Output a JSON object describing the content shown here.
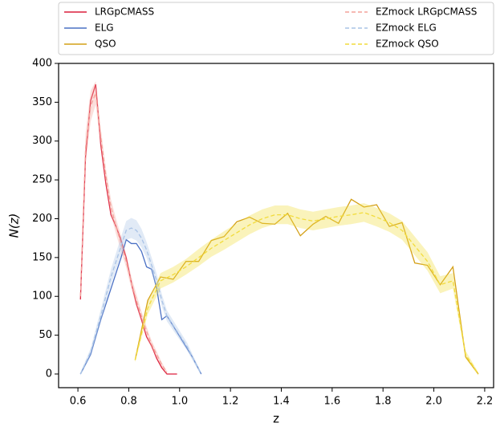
{
  "chart_data": {
    "type": "line",
    "xlabel": "z",
    "ylabel": "N(z)",
    "xlim": [
      0.524,
      2.235
    ],
    "ylim": [
      -17.6,
      400
    ],
    "xticks": [
      0.6,
      0.8,
      {
        "value": 1,
        "label": "1.0"
      },
      1.2,
      1.4,
      1.6,
      1.8,
      {
        "value": 2,
        "label": "2.0"
      },
      2.2
    ],
    "yticks": [
      0,
      50,
      100,
      150,
      200,
      250,
      300,
      350,
      400
    ],
    "series": [
      {
        "name": "LRGpCMASS",
        "color": "#dc1f3c",
        "x": [
          0.61,
          0.63,
          0.65,
          0.67,
          0.69,
          0.71,
          0.73,
          0.75,
          0.77,
          0.79,
          0.81,
          0.83,
          0.85,
          0.87,
          0.89,
          0.91,
          0.93,
          0.95,
          0.97,
          0.99
        ],
        "values": [
          96,
          280,
          352,
          373,
          295,
          245,
          205,
          190,
          172,
          150,
          118,
          90,
          70,
          48,
          36,
          20,
          8,
          0,
          0,
          0
        ]
      },
      {
        "name": "ELG",
        "color": "#4a70c4",
        "x": [
          0.61,
          0.65,
          0.69,
          0.73,
          0.77,
          0.79,
          0.81,
          0.83,
          0.85,
          0.87,
          0.89,
          0.91,
          0.93,
          0.95,
          1.05,
          1.085
        ],
        "values": [
          0,
          25,
          70,
          110,
          150,
          173,
          168,
          168,
          158,
          138,
          135,
          110,
          70,
          75,
          22,
          0
        ]
      },
      {
        "name": "QSO",
        "color": "#d4a017",
        "x": [
          0.825,
          0.875,
          0.925,
          0.975,
          1.025,
          1.075,
          1.125,
          1.175,
          1.225,
          1.275,
          1.325,
          1.375,
          1.425,
          1.475,
          1.525,
          1.575,
          1.625,
          1.675,
          1.725,
          1.775,
          1.825,
          1.875,
          1.925,
          1.975,
          2.025,
          2.075,
          2.125,
          2.175
        ],
        "values": [
          18,
          95,
          125,
          122,
          145,
          145,
          172,
          177,
          196,
          202,
          194,
          193,
          207,
          178,
          193,
          203,
          194,
          225,
          215,
          218,
          190,
          195,
          143,
          140,
          115,
          138,
          22,
          0
        ]
      },
      {
        "name": "EZmock LRGpCMASS",
        "color": "#f4a29a",
        "dashed": true,
        "x": [
          0.61,
          0.63,
          0.65,
          0.67,
          0.69,
          0.71,
          0.73,
          0.75,
          0.77,
          0.79,
          0.81,
          0.83,
          0.85,
          0.87,
          0.89,
          0.91,
          0.93,
          0.95
        ],
        "values": [
          100,
          290,
          345,
          362,
          305,
          255,
          215,
          190,
          168,
          145,
          118,
          95,
          75,
          55,
          38,
          25,
          12,
          2
        ],
        "errors": [
          8,
          20,
          20,
          15,
          12,
          10,
          10,
          10,
          10,
          8,
          8,
          8,
          6,
          6,
          5,
          4,
          3,
          2
        ]
      },
      {
        "name": "EZmock ELG",
        "color": "#a9c3e6",
        "dashed": true,
        "x": [
          0.61,
          0.65,
          0.69,
          0.73,
          0.77,
          0.79,
          0.81,
          0.83,
          0.85,
          0.87,
          0.89,
          0.91,
          0.93,
          0.95,
          0.99,
          1.03,
          1.05,
          1.085
        ],
        "values": [
          0,
          28,
          75,
          125,
          165,
          185,
          188,
          185,
          175,
          160,
          140,
          120,
          95,
          75,
          55,
          35,
          22,
          0
        ],
        "errors": [
          2,
          5,
          8,
          10,
          12,
          12,
          13,
          13,
          12,
          10,
          10,
          9,
          8,
          7,
          6,
          5,
          4,
          2
        ]
      },
      {
        "name": "EZmock QSO",
        "color": "#f2dc3c",
        "dashed": true,
        "x": [
          0.825,
          0.875,
          0.925,
          0.975,
          1.025,
          1.075,
          1.125,
          1.175,
          1.225,
          1.275,
          1.325,
          1.375,
          1.425,
          1.475,
          1.525,
          1.575,
          1.625,
          1.675,
          1.725,
          1.775,
          1.825,
          1.875,
          1.925,
          1.975,
          2.025,
          2.075,
          2.125,
          2.175
        ],
        "values": [
          18,
          85,
          120,
          128,
          138,
          150,
          162,
          172,
          182,
          192,
          200,
          205,
          205,
          200,
          197,
          200,
          203,
          205,
          208,
          202,
          195,
          185,
          165,
          145,
          115,
          120,
          25,
          0
        ],
        "errors": [
          3,
          8,
          10,
          10,
          10,
          11,
          11,
          12,
          12,
          12,
          12,
          12,
          12,
          12,
          12,
          12,
          12,
          12,
          12,
          12,
          12,
          12,
          12,
          12,
          11,
          10,
          5,
          2
        ]
      }
    ]
  }
}
